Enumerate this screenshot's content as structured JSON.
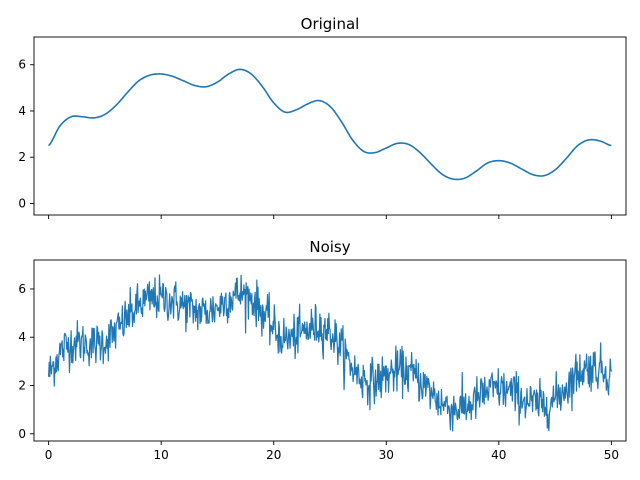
{
  "chart_data": [
    {
      "type": "line",
      "title": "Original",
      "xlabel": "",
      "ylabel": "",
      "xlim": [
        -1.3,
        1.3
      ],
      "xlim_data": [
        -1.3,
        51.3
      ],
      "ylim": [
        -0.5,
        7.2
      ],
      "xticks": [
        0,
        10,
        20,
        30,
        40,
        50
      ],
      "show_xtick_labels": false,
      "yticks": [
        0,
        2,
        4,
        6
      ],
      "ytick_labels": [
        "0",
        "2",
        "4",
        "6"
      ],
      "color": "#1f77b4",
      "grid": false,
      "x": [
        0,
        1,
        2,
        3,
        4,
        5,
        6,
        7,
        8,
        9,
        10,
        11,
        12,
        13,
        14,
        15,
        16,
        17,
        18,
        19,
        20,
        21,
        22,
        23,
        24,
        25,
        26,
        27,
        28,
        29,
        30,
        31,
        32,
        33,
        34,
        35,
        36,
        37,
        38,
        39,
        40,
        41,
        42,
        43,
        44,
        45,
        46,
        47,
        48,
        49,
        50
      ],
      "y": [
        2.5,
        3.35,
        3.75,
        3.75,
        3.7,
        3.85,
        4.25,
        4.8,
        5.3,
        5.55,
        5.6,
        5.5,
        5.3,
        5.1,
        5.05,
        5.25,
        5.6,
        5.8,
        5.6,
        5.05,
        4.35,
        3.95,
        4.05,
        4.3,
        4.45,
        4.2,
        3.55,
        2.75,
        2.25,
        2.2,
        2.4,
        2.6,
        2.55,
        2.2,
        1.7,
        1.25,
        1.05,
        1.1,
        1.4,
        1.75,
        1.85,
        1.75,
        1.5,
        1.25,
        1.2,
        1.45,
        1.95,
        2.5,
        2.75,
        2.7,
        2.5
      ]
    },
    {
      "type": "line",
      "title": "Noisy",
      "xlabel": "",
      "ylabel": "",
      "xlim": [
        -1.3,
        51.3
      ],
      "ylim": [
        -0.3,
        7.2
      ],
      "xticks": [
        0,
        10,
        20,
        30,
        40,
        50
      ],
      "xtick_labels": [
        "0",
        "10",
        "20",
        "30",
        "40",
        "50"
      ],
      "yticks": [
        0,
        2,
        4,
        6
      ],
      "ytick_labels": [
        "0",
        "2",
        "4",
        "6"
      ],
      "color": "#1f77b4",
      "grid": false,
      "noise_std": 0.45,
      "x": [
        0,
        1,
        2,
        3,
        4,
        5,
        6,
        7,
        8,
        9,
        10,
        11,
        12,
        13,
        14,
        15,
        16,
        17,
        18,
        19,
        20,
        21,
        22,
        23,
        24,
        25,
        26,
        27,
        28,
        29,
        30,
        31,
        32,
        33,
        34,
        35,
        36,
        37,
        38,
        39,
        40,
        41,
        42,
        43,
        44,
        45,
        46,
        47,
        48,
        49,
        50
      ],
      "y_underlying": [
        2.5,
        3.35,
        3.75,
        3.75,
        3.7,
        3.85,
        4.25,
        4.8,
        5.3,
        5.55,
        5.6,
        5.5,
        5.3,
        5.1,
        5.05,
        5.25,
        5.6,
        5.8,
        5.6,
        5.05,
        4.35,
        3.95,
        4.05,
        4.3,
        4.45,
        4.2,
        3.55,
        2.75,
        2.25,
        2.2,
        2.4,
        2.6,
        2.55,
        2.2,
        1.7,
        1.25,
        1.05,
        1.1,
        1.4,
        1.75,
        1.85,
        1.75,
        1.5,
        1.25,
        1.2,
        1.45,
        1.95,
        2.5,
        2.75,
        2.7,
        2.5
      ]
    }
  ]
}
